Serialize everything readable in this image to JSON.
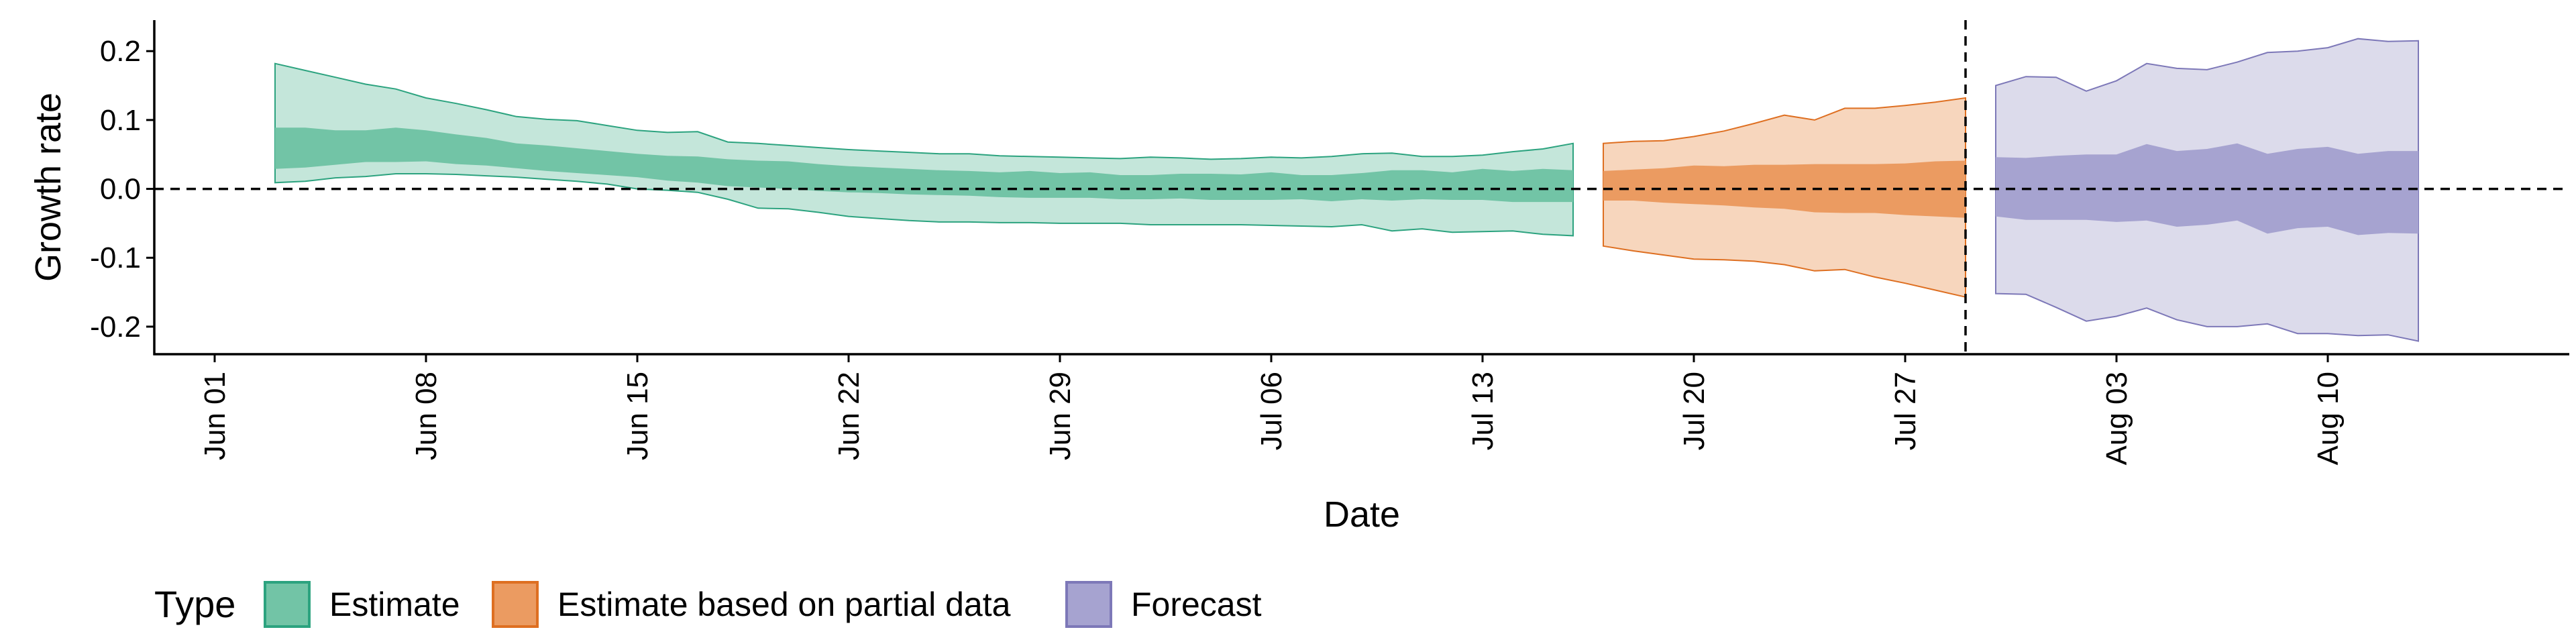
{
  "chart_data": {
    "type": "area",
    "xlabel": "Date",
    "ylabel": "Growth rate",
    "x_range": [
      "2020-05-30",
      "2020-08-18"
    ],
    "ylim": [
      -0.24,
      0.245
    ],
    "x_ticks": [
      "2020-06-01",
      "2020-06-08",
      "2020-06-15",
      "2020-06-22",
      "2020-06-29",
      "2020-07-06",
      "2020-07-13",
      "2020-07-20",
      "2020-07-27",
      "2020-08-03",
      "2020-08-10"
    ],
    "x_tick_labels": [
      "Jun 01",
      "Jun 08",
      "Jun 15",
      "Jun 22",
      "Jun 29",
      "Jul 06",
      "Jul 13",
      "Jul 20",
      "Jul 27",
      "Aug 03",
      "Aug 10"
    ],
    "y_ticks": [
      0.2,
      0.1,
      0.0,
      -0.1,
      -0.2
    ],
    "y_tick_labels": [
      "0.2",
      "0.1",
      "0.0",
      "-0.1",
      "-0.2"
    ],
    "reference_line_y": 0,
    "reference_line_x": "2020-07-29",
    "grid": false,
    "legend": {
      "title": "Type",
      "placement": "bottom-left",
      "items": [
        "Estimate",
        "Estimate based on partial data",
        "Forecast"
      ]
    },
    "colors": {
      "Estimate": {
        "outer": "#c4e6da",
        "inner": "#72c4a6",
        "line": "#2ca37f"
      },
      "Estimate based on partial data": {
        "outer": "#f7d6bd",
        "inner": "#eb9b61",
        "line": "#de6f21"
      },
      "Forecast": {
        "outer": "#dcdbeb",
        "inner": "#a6a3d0",
        "line": "#7d78b8"
      }
    },
    "series": [
      {
        "name": "Estimate",
        "x": [
          "2020-06-03",
          "2020-06-04",
          "2020-06-05",
          "2020-06-06",
          "2020-06-07",
          "2020-06-08",
          "2020-06-09",
          "2020-06-10",
          "2020-06-11",
          "2020-06-12",
          "2020-06-13",
          "2020-06-14",
          "2020-06-15",
          "2020-06-16",
          "2020-06-17",
          "2020-06-18",
          "2020-06-19",
          "2020-06-20",
          "2020-06-21",
          "2020-06-22",
          "2020-06-23",
          "2020-06-24",
          "2020-06-25",
          "2020-06-26",
          "2020-06-27",
          "2020-06-28",
          "2020-06-29",
          "2020-06-30",
          "2020-07-01",
          "2020-07-02",
          "2020-07-03",
          "2020-07-04",
          "2020-07-05",
          "2020-07-06",
          "2020-07-07",
          "2020-07-08",
          "2020-07-09",
          "2020-07-10",
          "2020-07-11",
          "2020-07-12",
          "2020-07-13",
          "2020-07-14",
          "2020-07-15",
          "2020-07-16"
        ],
        "upper90": [
          0.182,
          0.172,
          0.162,
          0.152,
          0.145,
          0.132,
          0.124,
          0.115,
          0.105,
          0.101,
          0.099,
          0.092,
          0.085,
          0.082,
          0.083,
          0.068,
          0.066,
          0.063,
          0.06,
          0.057,
          0.055,
          0.053,
          0.051,
          0.051,
          0.048,
          0.047,
          0.046,
          0.045,
          0.044,
          0.046,
          0.045,
          0.043,
          0.044,
          0.046,
          0.045,
          0.047,
          0.051,
          0.052,
          0.047,
          0.047,
          0.049,
          0.054,
          0.058,
          0.066
        ],
        "upper50": [
          0.089,
          0.089,
          0.085,
          0.085,
          0.089,
          0.085,
          0.079,
          0.074,
          0.066,
          0.063,
          0.059,
          0.055,
          0.051,
          0.048,
          0.047,
          0.043,
          0.041,
          0.04,
          0.036,
          0.033,
          0.031,
          0.029,
          0.027,
          0.026,
          0.024,
          0.026,
          0.023,
          0.024,
          0.02,
          0.02,
          0.022,
          0.022,
          0.021,
          0.024,
          0.02,
          0.02,
          0.023,
          0.027,
          0.027,
          0.024,
          0.029,
          0.026,
          0.029,
          0.027
        ],
        "lower50": [
          0.029,
          0.031,
          0.035,
          0.039,
          0.039,
          0.04,
          0.036,
          0.034,
          0.03,
          0.026,
          0.023,
          0.02,
          0.017,
          0.012,
          0.009,
          0.004,
          0.002,
          0.0,
          -0.003,
          -0.005,
          -0.006,
          -0.008,
          -0.009,
          -0.01,
          -0.012,
          -0.013,
          -0.013,
          -0.013,
          -0.015,
          -0.015,
          -0.014,
          -0.016,
          -0.016,
          -0.016,
          -0.015,
          -0.018,
          -0.015,
          -0.017,
          -0.015,
          -0.016,
          -0.016,
          -0.019,
          -0.019,
          -0.019
        ],
        "lower90": [
          0.009,
          0.011,
          0.016,
          0.018,
          0.022,
          0.022,
          0.021,
          0.019,
          0.017,
          0.014,
          0.011,
          0.007,
          0.0,
          -0.002,
          -0.005,
          -0.015,
          -0.028,
          -0.029,
          -0.034,
          -0.04,
          -0.043,
          -0.046,
          -0.048,
          -0.048,
          -0.049,
          -0.049,
          -0.05,
          -0.05,
          -0.05,
          -0.052,
          -0.052,
          -0.052,
          -0.052,
          -0.053,
          -0.054,
          -0.055,
          -0.052,
          -0.061,
          -0.058,
          -0.063,
          -0.062,
          -0.061,
          -0.066,
          -0.068
        ]
      },
      {
        "name": "Estimate based on partial data",
        "x": [
          "2020-07-17",
          "2020-07-18",
          "2020-07-19",
          "2020-07-20",
          "2020-07-21",
          "2020-07-22",
          "2020-07-23",
          "2020-07-24",
          "2020-07-25",
          "2020-07-26",
          "2020-07-27",
          "2020-07-28",
          "2020-07-29"
        ],
        "upper90": [
          0.066,
          0.069,
          0.07,
          0.076,
          0.084,
          0.095,
          0.107,
          0.1,
          0.117,
          0.117,
          0.121,
          0.126,
          0.132
        ],
        "upper50": [
          0.026,
          0.028,
          0.03,
          0.034,
          0.033,
          0.035,
          0.035,
          0.036,
          0.036,
          0.036,
          0.037,
          0.04,
          0.041
        ],
        "lower50": [
          -0.017,
          -0.017,
          -0.02,
          -0.022,
          -0.024,
          -0.027,
          -0.029,
          -0.034,
          -0.035,
          -0.035,
          -0.038,
          -0.04,
          -0.042
        ],
        "lower90": [
          -0.083,
          -0.09,
          -0.096,
          -0.102,
          -0.103,
          -0.105,
          -0.11,
          -0.119,
          -0.117,
          -0.128,
          -0.137,
          -0.147,
          -0.157
        ]
      },
      {
        "name": "Forecast",
        "x": [
          "2020-07-30",
          "2020-07-31",
          "2020-08-01",
          "2020-08-02",
          "2020-08-03",
          "2020-08-04",
          "2020-08-05",
          "2020-08-06",
          "2020-08-07",
          "2020-08-08",
          "2020-08-09",
          "2020-08-10",
          "2020-08-11",
          "2020-08-12",
          "2020-08-13"
        ],
        "upper90": [
          0.15,
          0.163,
          0.162,
          0.142,
          0.157,
          0.182,
          0.175,
          0.173,
          0.184,
          0.198,
          0.2,
          0.205,
          0.218,
          0.214,
          0.215
        ],
        "upper50": [
          0.046,
          0.045,
          0.048,
          0.05,
          0.05,
          0.065,
          0.055,
          0.058,
          0.066,
          0.051,
          0.058,
          0.061,
          0.051,
          0.055,
          0.055
        ],
        "lower50": [
          -0.04,
          -0.045,
          -0.045,
          -0.045,
          -0.048,
          -0.046,
          -0.055,
          -0.052,
          -0.046,
          -0.065,
          -0.057,
          -0.055,
          -0.067,
          -0.064,
          -0.065
        ],
        "lower90": [
          -0.152,
          -0.153,
          -0.172,
          -0.192,
          -0.185,
          -0.173,
          -0.19,
          -0.2,
          -0.2,
          -0.196,
          -0.21,
          -0.21,
          -0.213,
          -0.212,
          -0.221
        ]
      }
    ]
  }
}
